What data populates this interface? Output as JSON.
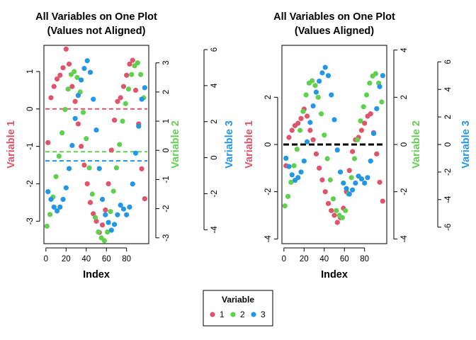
{
  "chart_data": [
    {
      "type": "scatter",
      "title": [
        "All Variables on One Plot",
        "(Values not Aligned)"
      ],
      "xlabel": "Index",
      "x_ticks": [
        0,
        20,
        40,
        60,
        80
      ],
      "xlim": [
        -2,
        102
      ],
      "y_axes": [
        {
          "side": "left",
          "label": "Variable 1",
          "color": "#DF536B",
          "lim": [
            -3.6,
            1.7
          ],
          "ticks": [
            -3,
            -2,
            -1,
            0,
            1
          ]
        },
        {
          "side": "right-inner",
          "label": "Variable 2",
          "color": "#61D04F",
          "lim": [
            -3.2,
            3.6
          ],
          "ticks": [
            -3,
            -2,
            -1,
            0,
            1,
            2,
            3
          ]
        },
        {
          "side": "right-outer",
          "label": "Variable 3",
          "color": "#2297E6",
          "lim": [
            -4.3,
            6.0
          ],
          "ticks": [
            -4,
            -2,
            0,
            2,
            4,
            6
          ]
        }
      ],
      "mean_lines": [
        {
          "variable": "1",
          "value": 0.0,
          "color": "#DF536B"
        },
        {
          "variable": "2",
          "value": -0.05,
          "color": "#61D04F"
        },
        {
          "variable": "3",
          "value": 0.0,
          "color": "#2297E6"
        }
      ],
      "series": [
        {
          "name": "1",
          "color": "#DF536B",
          "x": [
            2,
            5,
            8,
            11,
            14,
            17,
            20,
            23,
            26,
            29,
            32,
            35,
            38,
            41,
            44,
            47,
            50,
            53,
            56,
            59,
            62,
            65,
            68,
            71,
            74,
            77,
            80,
            83,
            86,
            89,
            92,
            95,
            98
          ],
          "y": [
            -0.9,
            0.3,
            0.6,
            0.8,
            0.9,
            1.1,
            1.6,
            1.2,
            0.6,
            0.2,
            -0.4,
            -1.0,
            -1.5,
            -2.0,
            -2.5,
            -2.8,
            -3.0,
            -3.3,
            -3.1,
            -2.7,
            -2.0,
            -1.1,
            -0.3,
            0.2,
            0.3,
            0.6,
            0.9,
            1.2,
            1.3,
            0.5,
            -0.4,
            -1.6,
            -2.4
          ]
        },
        {
          "name": "2",
          "color": "#61D04F",
          "x": [
            1,
            4,
            7,
            10,
            13,
            16,
            19,
            22,
            25,
            28,
            31,
            34,
            37,
            40,
            43,
            46,
            49,
            52,
            55,
            58,
            61,
            64,
            67,
            70,
            73,
            76,
            79,
            82,
            85,
            88,
            91,
            94,
            97
          ],
          "y": [
            -2.6,
            -2.2,
            -1.6,
            -0.9,
            -0.2,
            0.6,
            1.4,
            2.1,
            2.6,
            2.7,
            2.5,
            2.0,
            1.3,
            0.4,
            -0.6,
            -1.5,
            -2.3,
            -2.8,
            -3.0,
            -3.1,
            -2.8,
            -2.1,
            -1.4,
            -0.6,
            0.2,
            1.0,
            1.6,
            2.1,
            2.6,
            2.9,
            3.0,
            2.6,
            1.8
          ]
        },
        {
          "name": "3",
          "color": "#2297E6",
          "x": [
            2,
            5,
            8,
            11,
            14,
            17,
            20,
            23,
            26,
            29,
            32,
            35,
            38,
            41,
            44,
            47,
            50,
            53,
            56,
            59,
            62,
            65,
            68,
            71,
            74,
            77,
            80,
            83,
            86,
            89,
            92,
            95,
            98
          ],
          "y": [
            -1.6,
            -2.0,
            -2.4,
            -2.6,
            -2.4,
            -2.0,
            -1.4,
            -0.4,
            0.8,
            2.2,
            3.4,
            4.2,
            4.8,
            5.2,
            4.6,
            3.2,
            1.6,
            -0.4,
            -2.0,
            -2.8,
            -3.2,
            -3.6,
            -3.3,
            -2.8,
            -2.3,
            -2.5,
            -2.8,
            -2.4,
            -1.2,
            0.4,
            1.8,
            3.2,
            3.8
          ]
        }
      ]
    },
    {
      "type": "scatter",
      "title": [
        "All Variables on One Plot",
        "(Values Aligned)"
      ],
      "xlabel": "Index",
      "x_ticks": [
        0,
        20,
        40,
        60,
        80
      ],
      "xlim": [
        -2,
        102
      ],
      "y_axes": [
        {
          "side": "left",
          "label": "Variable 1",
          "color": "#DF536B",
          "lim": [
            -4.2,
            4.2
          ],
          "ticks": [
            -4,
            -2,
            0,
            2
          ]
        },
        {
          "side": "right-inner",
          "label": "Variable 2",
          "color": "#61D04F",
          "lim": [
            -4.2,
            4.2
          ],
          "ticks": [
            -4,
            -2,
            0,
            2,
            4
          ]
        },
        {
          "side": "right-outer",
          "label": "Variable 3",
          "color": "#2297E6",
          "lim": [
            -7.2,
            7.2
          ],
          "ticks": [
            -6,
            -4,
            -2,
            0,
            2,
            4,
            6
          ]
        }
      ],
      "zero_line": {
        "value": 0,
        "color": "#000000"
      },
      "series": [
        {
          "name": "1",
          "color": "#DF536B",
          "x": [
            2,
            5,
            8,
            11,
            14,
            17,
            20,
            23,
            26,
            29,
            32,
            35,
            38,
            41,
            44,
            47,
            50,
            53,
            56,
            59,
            62,
            65,
            68,
            71,
            74,
            77,
            80,
            83,
            86,
            89,
            92,
            95,
            98
          ],
          "y": [
            -0.9,
            0.3,
            0.6,
            0.8,
            0.9,
            1.1,
            1.5,
            1.2,
            0.6,
            0.2,
            -0.4,
            -1.0,
            -1.5,
            -2.0,
            -2.5,
            -2.8,
            -3.0,
            -3.3,
            -3.1,
            -2.7,
            -2.0,
            -1.1,
            -0.3,
            0.2,
            0.3,
            0.6,
            0.9,
            1.2,
            1.3,
            0.5,
            -0.4,
            -1.6,
            -2.4
          ]
        },
        {
          "name": "2",
          "color": "#61D04F",
          "x": [
            1,
            4,
            7,
            10,
            13,
            16,
            19,
            22,
            25,
            28,
            31,
            34,
            37,
            40,
            43,
            46,
            49,
            52,
            55,
            58,
            61,
            64,
            67,
            70,
            73,
            76,
            79,
            82,
            85,
            88,
            91,
            94,
            97
          ],
          "y": [
            -2.6,
            -2.2,
            -1.6,
            -0.9,
            -0.2,
            0.6,
            1.4,
            2.1,
            2.6,
            2.7,
            2.5,
            2.0,
            1.3,
            0.4,
            -0.6,
            -1.5,
            -2.3,
            -2.8,
            -3.0,
            -3.1,
            -2.8,
            -2.1,
            -1.4,
            -0.6,
            0.2,
            1.0,
            1.6,
            2.1,
            2.6,
            2.9,
            3.0,
            2.6,
            1.8
          ]
        },
        {
          "name": "3",
          "color": "#2297E6",
          "x": [
            2,
            5,
            8,
            11,
            14,
            17,
            20,
            23,
            26,
            29,
            32,
            35,
            38,
            41,
            44,
            47,
            50,
            53,
            56,
            59,
            62,
            65,
            68,
            71,
            74,
            77,
            80,
            83,
            86,
            89,
            92,
            95,
            98
          ],
          "y": [
            -1.0,
            -1.6,
            -2.2,
            -2.6,
            -2.4,
            -2.0,
            -1.2,
            0.2,
            1.6,
            2.8,
            3.8,
            4.6,
            5.2,
            5.6,
            5.0,
            3.6,
            1.8,
            -0.4,
            -2.0,
            -2.8,
            -3.2,
            -3.6,
            -3.3,
            -2.8,
            -2.3,
            -2.5,
            -2.8,
            -2.4,
            -1.2,
            0.8,
            2.6,
            4.2,
            5.0
          ]
        }
      ]
    }
  ],
  "legend": {
    "title": "Variable",
    "items": [
      {
        "label": "1",
        "color": "#DF536B"
      },
      {
        "label": "2",
        "color": "#61D04F"
      },
      {
        "label": "3",
        "color": "#2297E6"
      }
    ]
  }
}
